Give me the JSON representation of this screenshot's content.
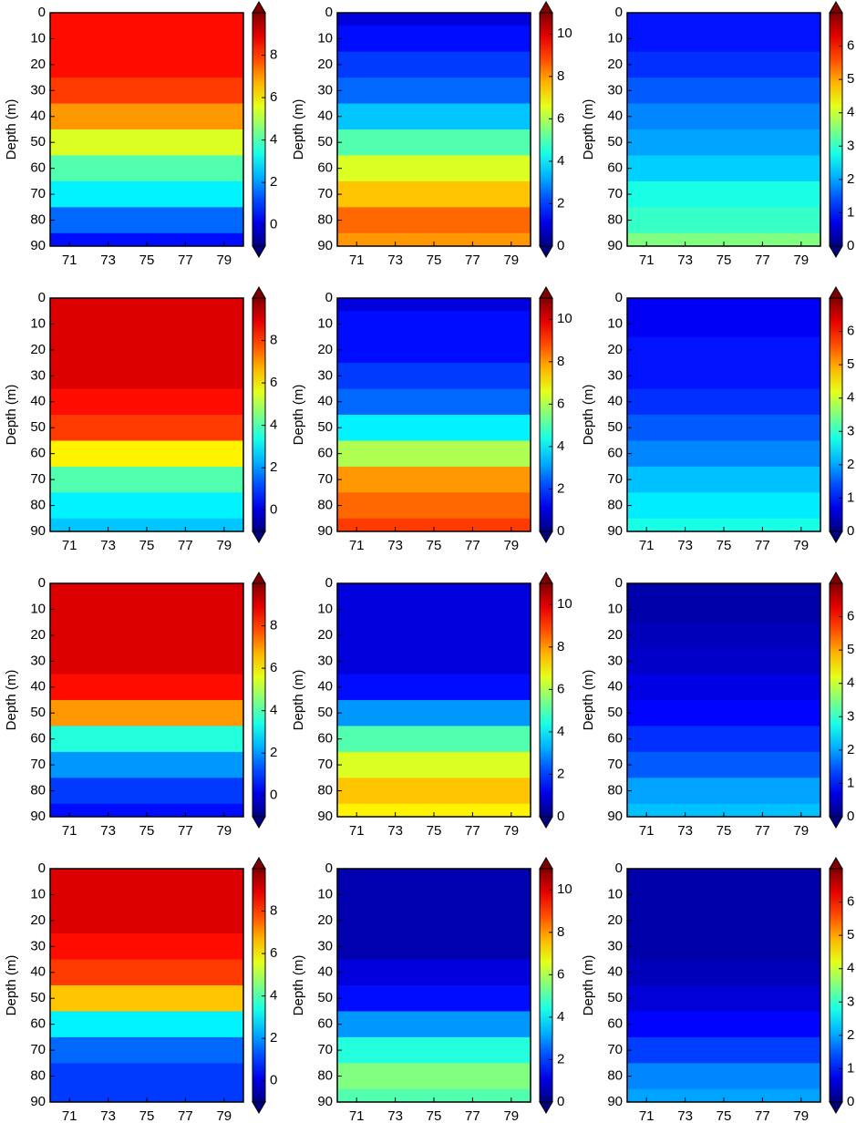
{
  "chart_data": [
    {
      "type": "contour",
      "ylabel": "Depth (m)",
      "colormap": "jet",
      "xlim": [
        70,
        80
      ],
      "xticks": [
        71,
        73,
        75,
        77,
        79
      ],
      "ylim": [
        0,
        90
      ],
      "yticks": [
        0,
        10,
        20,
        30,
        40,
        50,
        60,
        70,
        80,
        90
      ],
      "clim": [
        -1,
        10
      ],
      "cticks": [
        0,
        2,
        4,
        6,
        8
      ],
      "depths": [
        0,
        10,
        20,
        30,
        40,
        50,
        60,
        70,
        80,
        90
      ],
      "values": [
        8.5,
        8.5,
        8.5,
        8,
        7,
        5.5,
        4,
        3,
        1.5,
        0.5
      ]
    },
    {
      "type": "contour",
      "ylabel": "Depth (m)",
      "colormap": "jet",
      "xlim": [
        70,
        80
      ],
      "xticks": [
        71,
        73,
        75,
        77,
        79
      ],
      "ylim": [
        0,
        90
      ],
      "yticks": [
        0,
        10,
        20,
        30,
        40,
        50,
        60,
        70,
        80,
        90
      ],
      "clim": [
        0,
        11
      ],
      "cticks": [
        0,
        2,
        4,
        6,
        8,
        10
      ],
      "depths": [
        0,
        10,
        20,
        30,
        40,
        50,
        60,
        70,
        80,
        90
      ],
      "values": [
        1,
        1.5,
        2,
        2.5,
        3.5,
        5,
        6.5,
        7.5,
        8.5,
        8
      ]
    },
    {
      "type": "contour",
      "ylabel": "Depth (m)",
      "colormap": "jet",
      "xlim": [
        70,
        80
      ],
      "xticks": [
        71,
        73,
        75,
        77,
        79
      ],
      "ylim": [
        0,
        90
      ],
      "yticks": [
        0,
        10,
        20,
        30,
        40,
        50,
        60,
        70,
        80,
        90
      ],
      "clim": [
        0,
        7
      ],
      "cticks": [
        0,
        1,
        2,
        3,
        4,
        5,
        6
      ],
      "depths": [
        0,
        10,
        20,
        30,
        40,
        50,
        60,
        70,
        80,
        90
      ],
      "values": [
        1,
        1,
        1.2,
        1.5,
        1.8,
        2,
        2.3,
        2.8,
        3,
        3.5
      ]
    },
    {
      "type": "contour",
      "ylabel": "Depth (m)",
      "colormap": "jet",
      "xlim": [
        70,
        80
      ],
      "xticks": [
        71,
        73,
        75,
        77,
        79
      ],
      "ylim": [
        0,
        90
      ],
      "yticks": [
        0,
        10,
        20,
        30,
        40,
        50,
        60,
        70,
        80,
        90
      ],
      "clim": [
        -1,
        10
      ],
      "cticks": [
        0,
        2,
        4,
        6,
        8
      ],
      "depths": [
        0,
        10,
        20,
        30,
        40,
        50,
        60,
        70,
        80,
        90
      ],
      "values": [
        9,
        9,
        9,
        9,
        8.5,
        8,
        6,
        4,
        3,
        2.5
      ]
    },
    {
      "type": "contour",
      "ylabel": "Depth (m)",
      "colormap": "jet",
      "xlim": [
        70,
        80
      ],
      "xticks": [
        71,
        73,
        75,
        77,
        79
      ],
      "ylim": [
        0,
        90
      ],
      "yticks": [
        0,
        10,
        20,
        30,
        40,
        50,
        60,
        70,
        80,
        90
      ],
      "clim": [
        0,
        11
      ],
      "cticks": [
        0,
        2,
        4,
        6,
        8,
        10
      ],
      "depths": [
        0,
        10,
        20,
        30,
        40,
        50,
        60,
        70,
        80,
        90
      ],
      "values": [
        1,
        1.5,
        1.5,
        2,
        2.5,
        4,
        6,
        8,
        8.5,
        9
      ]
    },
    {
      "type": "contour",
      "ylabel": "Depth (m)",
      "colormap": "jet",
      "xlim": [
        70,
        80
      ],
      "xticks": [
        71,
        73,
        75,
        77,
        79
      ],
      "ylim": [
        0,
        90
      ],
      "yticks": [
        0,
        10,
        20,
        30,
        40,
        50,
        60,
        70,
        80,
        90
      ],
      "clim": [
        0,
        7
      ],
      "cticks": [
        0,
        1,
        2,
        3,
        4,
        5,
        6
      ],
      "depths": [
        0,
        10,
        20,
        30,
        40,
        50,
        60,
        70,
        80,
        90
      ],
      "values": [
        0.8,
        0.8,
        1,
        1,
        1.2,
        1.5,
        1.8,
        2.2,
        2.5,
        2.8
      ]
    },
    {
      "type": "contour",
      "ylabel": "Depth (m)",
      "colormap": "jet",
      "xlim": [
        70,
        80
      ],
      "xticks": [
        71,
        73,
        75,
        77,
        79
      ],
      "ylim": [
        0,
        90
      ],
      "yticks": [
        0,
        10,
        20,
        30,
        40,
        50,
        60,
        70,
        80,
        90
      ],
      "clim": [
        -1,
        10
      ],
      "cticks": [
        0,
        2,
        4,
        6,
        8
      ],
      "depths": [
        0,
        10,
        20,
        30,
        40,
        50,
        60,
        70,
        80,
        90
      ],
      "values": [
        9,
        9,
        9,
        9,
        8.5,
        7,
        3.5,
        2,
        1,
        0.5
      ]
    },
    {
      "type": "contour",
      "ylabel": "Depth (m)",
      "colormap": "jet",
      "xlim": [
        70,
        80
      ],
      "xticks": [
        71,
        73,
        75,
        77,
        79
      ],
      "ylim": [
        0,
        90
      ],
      "yticks": [
        0,
        10,
        20,
        30,
        40,
        50,
        60,
        70,
        80,
        90
      ],
      "clim": [
        0,
        11
      ],
      "cticks": [
        0,
        2,
        4,
        6,
        8,
        10
      ],
      "depths": [
        0,
        10,
        20,
        30,
        40,
        50,
        60,
        70,
        80,
        90
      ],
      "values": [
        1,
        1,
        1,
        1,
        1.5,
        3,
        5,
        6.5,
        7.5,
        7
      ]
    },
    {
      "type": "contour",
      "ylabel": "Depth (m)",
      "colormap": "jet",
      "xlim": [
        70,
        80
      ],
      "xticks": [
        71,
        73,
        75,
        77,
        79
      ],
      "ylim": [
        0,
        90
      ],
      "yticks": [
        0,
        10,
        20,
        30,
        40,
        50,
        60,
        70,
        80,
        90
      ],
      "clim": [
        0,
        7
      ],
      "cticks": [
        0,
        1,
        2,
        3,
        4,
        5,
        6
      ],
      "depths": [
        0,
        10,
        20,
        30,
        40,
        50,
        60,
        70,
        80,
        90
      ],
      "values": [
        0.3,
        0.3,
        0.4,
        0.5,
        0.7,
        0.9,
        1.2,
        1.5,
        2,
        2.2
      ]
    },
    {
      "type": "contour",
      "ylabel": "Depth (m)",
      "colormap": "jet",
      "xlim": [
        70,
        80
      ],
      "xticks": [
        71,
        73,
        75,
        77,
        79
      ],
      "ylim": [
        0,
        90
      ],
      "yticks": [
        0,
        10,
        20,
        30,
        40,
        50,
        60,
        70,
        80,
        90
      ],
      "clim": [
        -1,
        10
      ],
      "cticks": [
        0,
        2,
        4,
        6,
        8
      ],
      "depths": [
        0,
        10,
        20,
        30,
        40,
        50,
        60,
        70,
        80,
        90
      ],
      "values": [
        9,
        9,
        9,
        8.5,
        8,
        6.5,
        3,
        1.5,
        1,
        1
      ]
    },
    {
      "type": "contour",
      "ylabel": "Depth (m)",
      "colormap": "jet",
      "xlim": [
        70,
        80
      ],
      "xticks": [
        71,
        73,
        75,
        77,
        79
      ],
      "ylim": [
        0,
        90
      ],
      "yticks": [
        0,
        10,
        20,
        30,
        40,
        50,
        60,
        70,
        80,
        90
      ],
      "clim": [
        0,
        11
      ],
      "cticks": [
        0,
        2,
        4,
        6,
        8,
        10
      ],
      "depths": [
        0,
        10,
        20,
        30,
        40,
        50,
        60,
        70,
        80,
        90
      ],
      "values": [
        0.5,
        0.5,
        0.5,
        0.5,
        1,
        1.5,
        3,
        4.5,
        5.5,
        5
      ]
    },
    {
      "type": "contour",
      "ylabel": "Depth (m)",
      "colormap": "jet",
      "xlim": [
        70,
        80
      ],
      "xticks": [
        71,
        73,
        75,
        77,
        79
      ],
      "ylim": [
        0,
        90
      ],
      "yticks": [
        0,
        10,
        20,
        30,
        40,
        50,
        60,
        70,
        80,
        90
      ],
      "clim": [
        0,
        7
      ],
      "cticks": [
        0,
        1,
        2,
        3,
        4,
        5,
        6
      ],
      "depths": [
        0,
        10,
        20,
        30,
        40,
        50,
        60,
        70,
        80,
        90
      ],
      "values": [
        0.3,
        0.3,
        0.3,
        0.3,
        0.4,
        0.6,
        0.9,
        1.3,
        1.8,
        2
      ]
    }
  ]
}
